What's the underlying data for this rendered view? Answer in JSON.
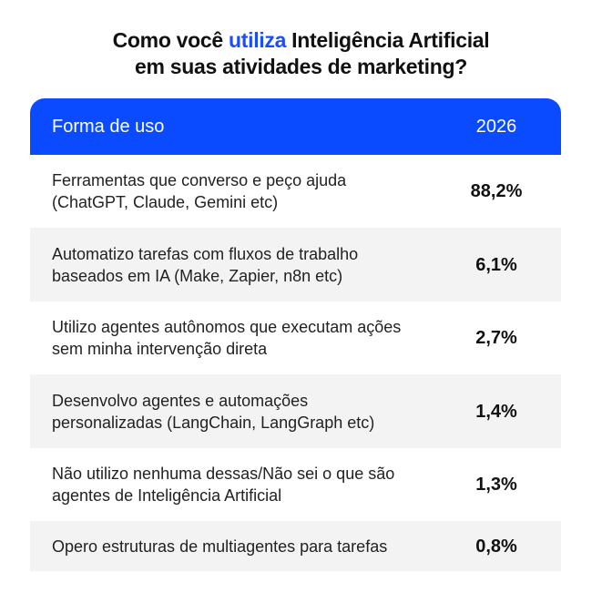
{
  "title": {
    "line1_pre": "Como você ",
    "line1_highlight": "utiliza",
    "line1_post": " Inteligência Artificial",
    "line2": "em suas atividades de marketing?"
  },
  "colors": {
    "accent": "#0a4bff",
    "row_alt": "#f3f3f3"
  },
  "chart_data": {
    "type": "table",
    "columns": [
      "Forma de uso",
      "2026"
    ],
    "rows": [
      {
        "label_1": "Ferramentas que converso e peço ajuda",
        "label_2": "(ChatGPT, Claude, Gemini etc)",
        "value": "88,2%"
      },
      {
        "label_1": "Automatizo tarefas com fluxos de trabalho",
        "label_2": "baseados em IA (Make, Zapier, n8n etc)",
        "value": "6,1%"
      },
      {
        "label_1": "Utilizo agentes autônomos que executam ações",
        "label_2": "sem minha intervenção direta",
        "value": "2,7%"
      },
      {
        "label_1": "Desenvolvo agentes e automações",
        "label_2": "personalizadas (LangChain, LangGraph etc)",
        "value": "1,4%"
      },
      {
        "label_1": "Não utilizo nenhuma dessas/Não sei o que são",
        "label_2": "agentes de Inteligência Artificial",
        "value": "1,3%"
      },
      {
        "label_1": "Opero estruturas de multiagentes para tarefas",
        "label_2": "",
        "value": "0,8%"
      }
    ]
  }
}
